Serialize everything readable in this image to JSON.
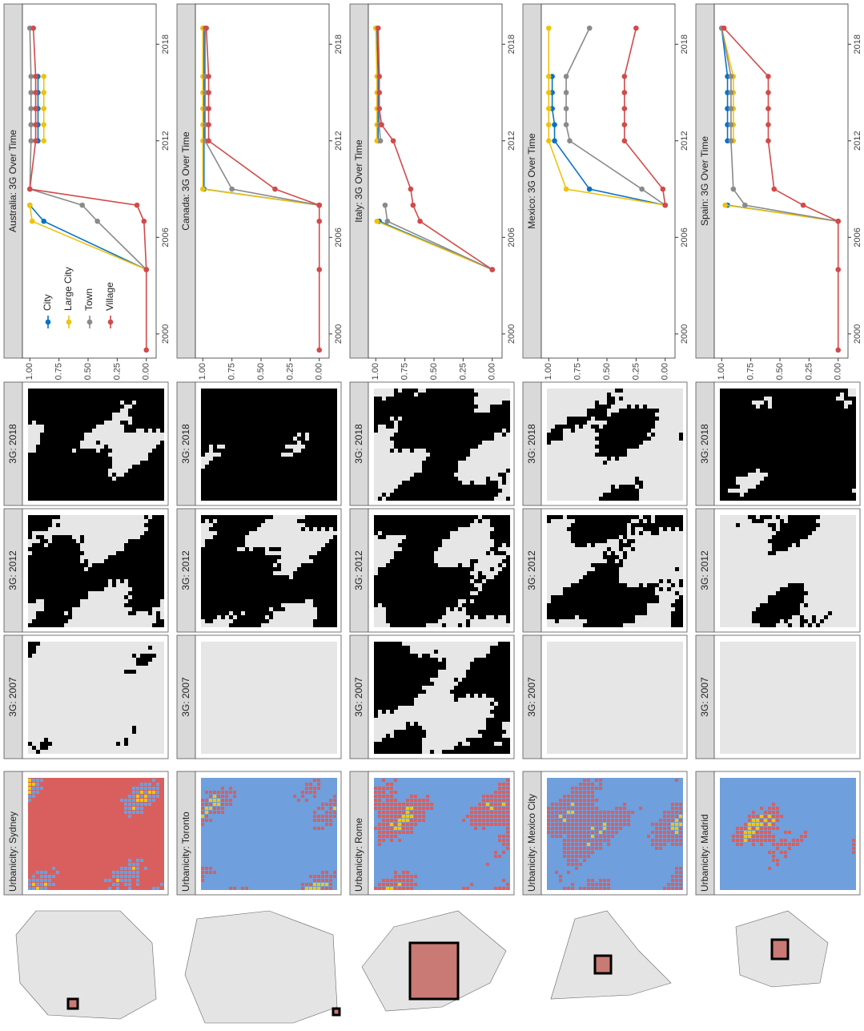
{
  "rows": [
    {
      "urbanicity_title": "Urbanicity: Sydney",
      "panel_titles": [
        "3G: 2007",
        "3G: 2012",
        "3G: 2018"
      ]
    },
    {
      "urbanicity_title": "Urbanicity: Toronto",
      "panel_titles": [
        "3G: 2007",
        "3G: 2012",
        "3G: 2018"
      ]
    },
    {
      "urbanicity_title": "Urbanicity: Rome",
      "panel_titles": [
        "3G: 2007",
        "3G: 2012",
        "3G: 2018"
      ]
    },
    {
      "urbanicity_title": "Urbanicity: Mexico City",
      "panel_titles": [
        "3G: 2007",
        "3G: 2012",
        "3G: 2018"
      ]
    },
    {
      "urbanicity_title": "Urbanicity: Madrid",
      "panel_titles": [
        "3G: 2007",
        "3G: 2012",
        "3G: 2018"
      ]
    }
  ],
  "chart_data": [
    {
      "type": "line",
      "title": "Australia: 3G Over Time",
      "legend": true,
      "legend_position": "left",
      "x": [
        1999,
        2004,
        2007,
        2008,
        2009,
        2012,
        2013,
        2014,
        2015,
        2016,
        2019
      ],
      "xlim": [
        1998.5,
        2020.5
      ],
      "xticks": [
        2000,
        2006,
        2012,
        2018
      ],
      "ylim": [
        -0.05,
        1.05
      ],
      "yticks": [
        {
          "value": 0,
          "label": "0.00"
        },
        0.25,
        {
          "value": 0.5,
          "label": "0.50"
        },
        0.75,
        {
          "value": 1,
          "label": "1.00"
        }
      ],
      "series": [
        {
          "name": "City",
          "color": "#0a72c4",
          "values": [
            null,
            0,
            0.88,
            1.0,
            null,
            0.93,
            0.93,
            0.93,
            0.93,
            0.93,
            null
          ]
        },
        {
          "name": "Large City",
          "color": "#efc20e",
          "values": [
            null,
            0,
            0.98,
            1.0,
            null,
            0.88,
            0.88,
            0.88,
            0.88,
            0.88,
            null
          ]
        },
        {
          "name": "Town",
          "color": "#8a8a8a",
          "values": [
            null,
            0,
            0.42,
            0.55,
            1.0,
            0.99,
            0.99,
            0.99,
            0.99,
            0.99,
            1.0
          ]
        },
        {
          "name": "Village",
          "color": "#d24a4a",
          "values": [
            0,
            0,
            0.02,
            0.08,
            1.0,
            0.95,
            0.95,
            0.95,
            0.95,
            0.95,
            0.97
          ]
        }
      ]
    },
    {
      "type": "line",
      "title": "Canada: 3G Over Time",
      "legend": false,
      "x": [
        1999,
        2004,
        2007,
        2008,
        2009,
        2012,
        2013,
        2014,
        2015,
        2016,
        2019
      ],
      "xlim": [
        1998.5,
        2020.5
      ],
      "xticks": [
        2000,
        2006,
        2012,
        2018
      ],
      "ylim": [
        -0.05,
        1.05
      ],
      "yticks": [
        {
          "value": 0,
          "label": "0.00"
        },
        0.25,
        {
          "value": 0.5,
          "label": "0.50"
        },
        0.75,
        {
          "value": 1,
          "label": "1.00"
        }
      ],
      "series": [
        {
          "name": "City",
          "color": "#0a72c4",
          "values": [
            null,
            null,
            null,
            0,
            0.99,
            0.99,
            0.99,
            0.99,
            0.99,
            0.99,
            0.99
          ]
        },
        {
          "name": "Large City",
          "color": "#efc20e",
          "values": [
            null,
            null,
            null,
            0,
            1.0,
            1.0,
            1.0,
            1.0,
            1.0,
            1.0,
            1.0
          ]
        },
        {
          "name": "Town",
          "color": "#8a8a8a",
          "values": [
            null,
            null,
            null,
            0,
            0.75,
            0.98,
            0.98,
            0.98,
            0.98,
            0.98,
            0.98
          ]
        },
        {
          "name": "Village",
          "color": "#d24a4a",
          "values": [
            0,
            0,
            0,
            0,
            0.38,
            0.95,
            0.95,
            0.95,
            0.95,
            0.95,
            0.97
          ]
        }
      ]
    },
    {
      "type": "line",
      "title": "Italy: 3G Over Time",
      "legend": false,
      "x": [
        1999,
        2004,
        2007,
        2008,
        2009,
        2012,
        2013,
        2014,
        2015,
        2016,
        2019
      ],
      "xlim": [
        1998.5,
        2020.5
      ],
      "xticks": [
        2000,
        2006,
        2012,
        2018
      ],
      "ylim": [
        -0.05,
        1.05
      ],
      "yticks": [
        {
          "value": 0,
          "label": "0.00"
        },
        0.25,
        {
          "value": 0.5,
          "label": "0.50"
        },
        0.75,
        {
          "value": 1,
          "label": "1.00"
        }
      ],
      "series": [
        {
          "name": "City",
          "color": "#0a72c4",
          "values": [
            null,
            0,
            0.97,
            null,
            null,
            0.98,
            0.98,
            0.98,
            0.98,
            0.98,
            0.99
          ]
        },
        {
          "name": "Large City",
          "color": "#efc20e",
          "values": [
            null,
            0,
            0.99,
            null,
            null,
            0.99,
            0.99,
            0.99,
            0.99,
            0.99,
            1.0
          ]
        },
        {
          "name": "Town",
          "color": "#8a8a8a",
          "values": [
            null,
            0,
            0.9,
            0.92,
            null,
            0.96,
            0.97,
            0.97,
            0.97,
            0.97,
            0.98
          ]
        },
        {
          "name": "Village",
          "color": "#d24a4a",
          "values": [
            null,
            0,
            0.62,
            0.68,
            0.7,
            0.85,
            0.95,
            0.97,
            0.97,
            0.97,
            0.98
          ]
        }
      ]
    },
    {
      "type": "line",
      "title": "Mexico: 3G Over Time",
      "legend": false,
      "x": [
        1999,
        2004,
        2007,
        2008,
        2009,
        2012,
        2013,
        2014,
        2015,
        2016,
        2019
      ],
      "xlim": [
        1998.5,
        2020.5
      ],
      "xticks": [
        2000,
        2006,
        2012,
        2018
      ],
      "ylim": [
        -0.05,
        1.05
      ],
      "yticks": [
        {
          "value": 0,
          "label": "0.00"
        },
        0.25,
        {
          "value": 0.5,
          "label": "0.50"
        },
        0.75,
        {
          "value": 1,
          "label": "1.00"
        }
      ],
      "series": [
        {
          "name": "City",
          "color": "#0a72c4",
          "values": [
            null,
            null,
            null,
            0,
            0.65,
            0.95,
            0.95,
            0.97,
            0.97,
            0.97,
            null
          ]
        },
        {
          "name": "Large City",
          "color": "#efc20e",
          "values": [
            null,
            null,
            null,
            0,
            0.85,
            1.0,
            1.0,
            1.0,
            1.0,
            1.0,
            1.0
          ]
        },
        {
          "name": "Town",
          "color": "#8a8a8a",
          "values": [
            null,
            null,
            null,
            0,
            0.2,
            0.82,
            0.85,
            0.85,
            0.85,
            0.85,
            0.65
          ]
        },
        {
          "name": "Village",
          "color": "#d24a4a",
          "values": [
            null,
            null,
            null,
            0,
            0.02,
            0.35,
            0.35,
            0.35,
            0.35,
            0.35,
            0.25
          ]
        }
      ]
    },
    {
      "type": "line",
      "title": "Spain: 3G Over Time",
      "legend": false,
      "x": [
        1999,
        2004,
        2007,
        2008,
        2009,
        2012,
        2013,
        2014,
        2015,
        2016,
        2019
      ],
      "xlim": [
        1998.5,
        2020.5
      ],
      "xticks": [
        2000,
        2006,
        2012,
        2018
      ],
      "ylim": [
        -0.05,
        1.05
      ],
      "yticks": [
        {
          "value": 0,
          "label": "0.00"
        },
        0.25,
        {
          "value": 0.5,
          "label": "0.50"
        },
        0.75,
        {
          "value": 1,
          "label": "1.00"
        }
      ],
      "series": [
        {
          "name": "City",
          "color": "#0a72c4",
          "values": [
            null,
            null,
            0,
            0.95,
            null,
            0.95,
            0.95,
            0.95,
            0.95,
            0.95,
            1.0
          ]
        },
        {
          "name": "Large City",
          "color": "#efc20e",
          "values": [
            null,
            null,
            0,
            0.97,
            null,
            0.9,
            0.9,
            0.9,
            0.9,
            0.9,
            1.0
          ]
        },
        {
          "name": "Town",
          "color": "#8a8a8a",
          "values": [
            null,
            null,
            0,
            0.8,
            0.9,
            0.92,
            0.92,
            0.92,
            0.92,
            0.92,
            1.0
          ]
        },
        {
          "name": "Village",
          "color": "#d24a4a",
          "values": [
            0,
            0,
            0,
            0.3,
            0.55,
            0.6,
            0.6,
            0.6,
            0.6,
            0.6,
            0.98
          ]
        }
      ]
    }
  ]
}
